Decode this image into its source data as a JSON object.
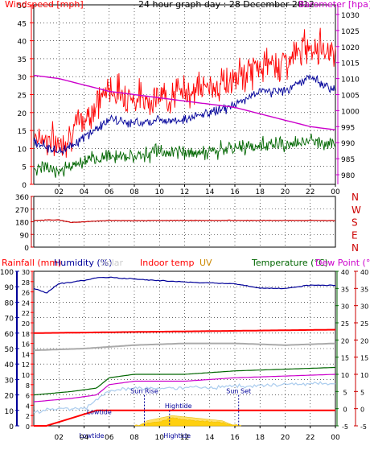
{
  "title": "24 hour graph day : 28 December 2012",
  "x_tick_labels": [
    "02",
    "04",
    "06",
    "08",
    "10",
    "12",
    "14",
    "16",
    "18",
    "20",
    "22",
    "00"
  ],
  "colors": {
    "axis": "#000000",
    "grid": "#000000",
    "wind_gust": "#ff0000",
    "wind_avg": "#000099",
    "wind_min": "#006600",
    "barometer": "#cc00cc",
    "direction": "#cc0000",
    "rain": "#ff0000",
    "humidity": "#000099",
    "indoor_temp": "#ff0000",
    "indoor_hum": "#aaaaaa",
    "temperature": "#006600",
    "dew_point": "#cc00cc",
    "apparent": "#aaccee",
    "uv": "#ffcc00",
    "solar": "#ffcc00"
  },
  "panel1": {
    "left_label": "Windspeed [mph]",
    "right_label": "Barometer [hpa]",
    "left_ticks": [
      "50",
      "45",
      "40",
      "35",
      "30",
      "25",
      "20",
      "15",
      "10",
      "5",
      "0"
    ],
    "right_ticks": [
      "1030",
      "1025",
      "1020",
      "1015",
      "1010",
      "1005",
      "1000",
      "995",
      "990",
      "985",
      "980"
    ]
  },
  "panel2": {
    "left_ticks": [
      "360",
      "270",
      "180",
      "90",
      "0"
    ],
    "right_labels": [
      "N",
      "W",
      "S",
      "E",
      "N"
    ]
  },
  "panel3": {
    "legend": {
      "rainfall": "Rainfall (mm)",
      "humidity": "Humidity (%)",
      "solar": "Solar",
      "indoor_temp": "Indoor temp",
      "uv": "UV",
      "temperature": "Temperature (°C)",
      "dew_point": "Dew Point (°C)"
    },
    "humidity_ticks": [
      "100",
      "90",
      "80",
      "70",
      "60",
      "50",
      "40",
      "30",
      "20",
      "10",
      "0"
    ],
    "rain_ticks": [
      "30",
      "28",
      "26",
      "24",
      "22",
      "20",
      "18",
      "16",
      "14",
      "12",
      "10",
      "8",
      "6",
      "4",
      "2",
      "0"
    ],
    "temp_ticks_left": [
      "40",
      "35",
      "30",
      "25",
      "20",
      "15",
      "10",
      "5",
      "0",
      "-5"
    ],
    "temp_ticks_right": [
      "40",
      "35",
      "30",
      "25",
      "20",
      "15",
      "10",
      "5",
      "0",
      "-5"
    ],
    "annotations": {
      "lowtide_1": "Lowtide",
      "lowtide_2": "Lowtide",
      "sunrise": "Sun Rise",
      "hightide_1": "Hightide",
      "hightide_2": "Hightide",
      "sunset": "Sun Set"
    }
  },
  "chart_data": [
    {
      "type": "line",
      "title": "24 hour graph day : 28 December 2012",
      "xlabel": "",
      "x_range_hours": [
        0,
        24
      ],
      "left_axis": {
        "label": "Windspeed [mph]",
        "ylim": [
          0,
          50
        ]
      },
      "right_axis": {
        "label": "Barometer [hpa]",
        "ylim": [
          977,
          1033
        ]
      },
      "series": [
        {
          "name": "",
          "axis": "left",
          "color": "#ff0000",
          "x": [
            0,
            2,
            4,
            6,
            8,
            10,
            12,
            14,
            16,
            18,
            20,
            22,
            24
          ],
          "values": [
            14,
            11,
            18,
            27,
            24,
            24,
            26,
            27,
            29,
            33,
            34,
            39,
            37
          ]
        },
        {
          "name": "",
          "axis": "left",
          "color": "#000099",
          "x": [
            0,
            2,
            4,
            6,
            8,
            10,
            12,
            14,
            16,
            18,
            20,
            22,
            24
          ],
          "values": [
            12,
            9,
            13,
            18,
            17,
            18,
            18,
            20,
            22,
            26,
            26,
            30,
            26
          ]
        },
        {
          "name": "",
          "axis": "left",
          "color": "#006600",
          "x": [
            0,
            2,
            4,
            6,
            8,
            10,
            12,
            14,
            16,
            18,
            20,
            22,
            24
          ],
          "values": [
            5,
            4,
            6,
            8,
            8,
            9,
            9,
            9,
            10,
            11,
            11,
            12,
            11
          ]
        },
        {
          "name": "Barometer",
          "axis": "right",
          "color": "#cc00cc",
          "x": [
            0,
            2,
            4,
            6,
            8,
            10,
            12,
            14,
            16,
            18,
            20,
            22,
            24
          ],
          "values": [
            1011,
            1010,
            1008,
            1006,
            1005,
            1004,
            1003,
            1002,
            1001,
            999,
            997,
            995,
            994
          ]
        }
      ]
    },
    {
      "type": "line",
      "title": "",
      "x_range_hours": [
        0,
        24
      ],
      "ylim": [
        0,
        360
      ],
      "series": [
        {
          "name": "",
          "color": "#cc0000",
          "x": [
            0,
            2,
            3,
            4,
            6,
            8,
            10,
            12,
            14,
            16,
            18,
            20,
            22,
            24
          ],
          "values": [
            190,
            195,
            175,
            180,
            190,
            188,
            190,
            190,
            190,
            190,
            190,
            190,
            190,
            188
          ]
        }
      ]
    },
    {
      "type": "line",
      "title": "",
      "x_range_hours": [
        0,
        24
      ],
      "humidity_axis": {
        "label": "Humidity (%)",
        "ylim": [
          0,
          100
        ]
      },
      "rain_axis": {
        "label": "Rainfall (mm)",
        "ylim": [
          0,
          30
        ]
      },
      "temp_axis": {
        "label": "Temperature (°C)",
        "ylim": [
          -5,
          40
        ]
      },
      "series": [
        {
          "name": "Humidity (%)",
          "axis": "humidity",
          "color": "#000099",
          "x": [
            0,
            1,
            2,
            4,
            5,
            6,
            8,
            12,
            16,
            18,
            20,
            22,
            24
          ],
          "values": [
            89,
            86,
            92,
            94,
            96,
            96,
            95,
            93,
            92,
            89,
            89,
            91,
            91
          ]
        },
        {
          "name": "Rainfall (mm)",
          "axis": "rain",
          "color": "#ff0000",
          "x": [
            0,
            1,
            3,
            5,
            5.5,
            6,
            24
          ],
          "values": [
            0,
            0,
            1.5,
            3,
            3,
            3,
            3
          ]
        },
        {
          "name": "Indoor temp",
          "axis": "temp",
          "color": "#ff0000",
          "x": [
            0,
            24
          ],
          "values": [
            22,
            23
          ]
        },
        {
          "name": "",
          "axis": "temp",
          "color": "#aaaaaa",
          "x": [
            0,
            4,
            6,
            8,
            12,
            16,
            20,
            24
          ],
          "values": [
            17,
            17.5,
            18,
            18.5,
            19,
            19,
            18.5,
            19
          ]
        },
        {
          "name": "Temperature (°C)",
          "axis": "temp",
          "color": "#006600",
          "x": [
            0,
            3,
            5,
            6,
            8,
            12,
            16,
            20,
            24
          ],
          "values": [
            4,
            5,
            6,
            9,
            10,
            10,
            11,
            11.5,
            12
          ]
        },
        {
          "name": "Dew Point (°C)",
          "axis": "temp",
          "color": "#cc00cc",
          "x": [
            0,
            3,
            5,
            6,
            8,
            12,
            16,
            20,
            24
          ],
          "values": [
            2,
            3,
            4,
            7,
            8,
            8,
            9,
            9.5,
            10
          ]
        },
        {
          "name": "",
          "axis": "temp",
          "color": "#aaccee",
          "x": [
            0,
            2,
            4,
            6,
            8,
            12,
            16,
            20,
            24
          ],
          "values": [
            -1,
            0,
            0,
            5,
            6,
            6,
            6.5,
            7,
            7.5
          ]
        },
        {
          "name": "UV",
          "axis": "rain",
          "color": "#ffcc00",
          "x": [
            8.5,
            9,
            11,
            13,
            15,
            16
          ],
          "values": [
            0,
            1,
            2,
            1.5,
            1,
            0
          ]
        },
        {
          "name": "Solar",
          "axis": "rain",
          "color": "#ffcc00",
          "x": [
            8,
            8.5,
            10,
            11,
            12,
            13,
            14,
            15,
            16,
            16.5
          ],
          "values": [
            0,
            0.3,
            0.8,
            1.6,
            1.2,
            1.0,
            0.8,
            0.6,
            0.2,
            0
          ]
        }
      ],
      "markers": [
        {
          "label": "Lowtide",
          "x_hours": 4.5
        },
        {
          "label": "Sun Rise",
          "x_hours": 8.8
        },
        {
          "label": "Hightide",
          "x_hours": 10.8
        },
        {
          "label": "Sun Set",
          "x_hours": 16.3
        }
      ]
    }
  ]
}
